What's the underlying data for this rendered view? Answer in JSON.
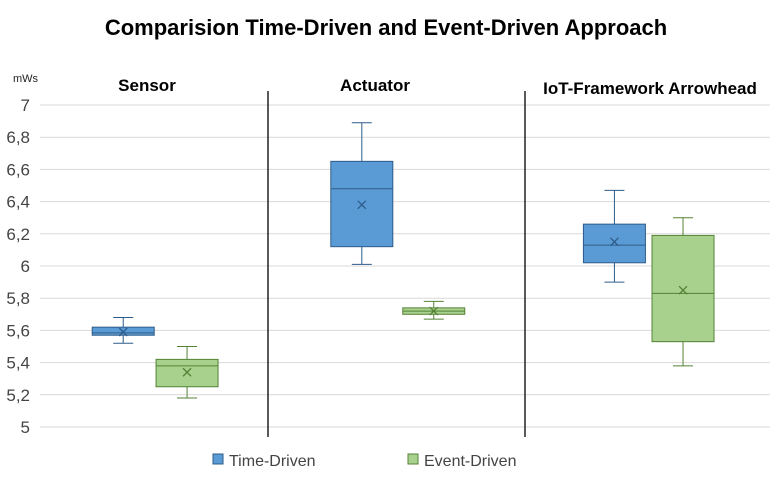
{
  "chart_data": {
    "type": "boxplot",
    "title": "Comparision Time-Driven and Event-Driven Approach",
    "ylabel": "mWs",
    "ylim": [
      5,
      7
    ],
    "yticks": [
      "5",
      "5,2",
      "5,4",
      "5,6",
      "5,8",
      "6",
      "6,2",
      "6,4",
      "6,6",
      "6,8",
      "7"
    ],
    "grid": true,
    "legend_position": "bottom",
    "groups": [
      "Sensor",
      "Actuator",
      "IoT-Framework Arrowhead"
    ],
    "series": [
      {
        "name": "Time-Driven",
        "color": "#5B9BD5",
        "edge": "#2E5C8A",
        "boxes": [
          {
            "group": "Sensor",
            "min": 5.52,
            "q1": 5.57,
            "median": 5.585,
            "q3": 5.62,
            "max": 5.68,
            "mean": 5.59
          },
          {
            "group": "Actuator",
            "min": 6.01,
            "q1": 6.12,
            "median": 6.48,
            "q3": 6.65,
            "max": 6.89,
            "mean": 6.38
          },
          {
            "group": "IoT-Framework Arrowhead",
            "min": 5.9,
            "q1": 6.02,
            "median": 6.13,
            "q3": 6.26,
            "max": 6.47,
            "mean": 6.15
          }
        ]
      },
      {
        "name": "Event-Driven",
        "color": "#A9D18E",
        "edge": "#548235",
        "boxes": [
          {
            "group": "Sensor",
            "min": 5.18,
            "q1": 5.25,
            "median": 5.38,
            "q3": 5.42,
            "max": 5.5,
            "mean": 5.34
          },
          {
            "group": "Actuator",
            "min": 5.67,
            "q1": 5.7,
            "median": 5.72,
            "q3": 5.74,
            "max": 5.78,
            "mean": 5.72
          },
          {
            "group": "IoT-Framework Arrowhead",
            "min": 5.38,
            "q1": 5.53,
            "median": 5.83,
            "q3": 6.19,
            "max": 6.3,
            "mean": 5.85
          }
        ]
      }
    ]
  }
}
